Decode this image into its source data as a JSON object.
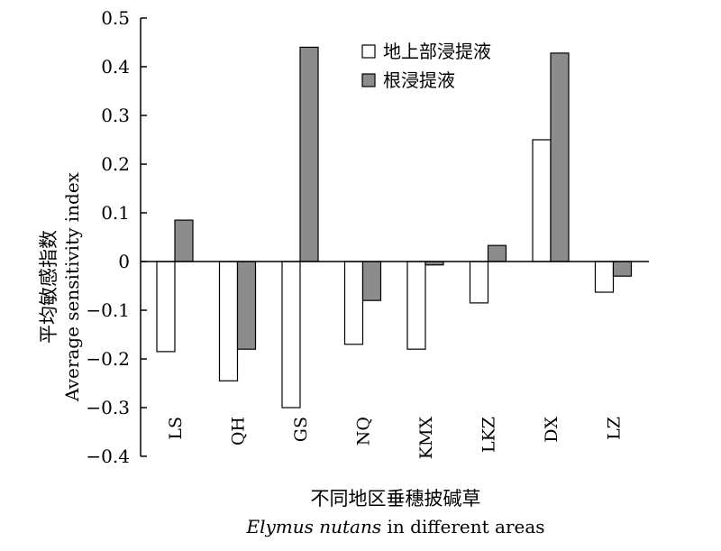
{
  "chart_data": {
    "type": "bar",
    "categories": [
      "LS",
      "QH",
      "GS",
      "NQ",
      "KMX",
      "LKZ",
      "DX",
      "LZ"
    ],
    "series": [
      {
        "name": "地上部浸提液",
        "color": "#ffffff",
        "values": [
          -0.185,
          -0.245,
          -0.3,
          -0.17,
          -0.18,
          -0.085,
          0.25,
          -0.063
        ]
      },
      {
        "name": "根浸提液",
        "color": "#8c8c8c",
        "values": [
          0.085,
          -0.18,
          0.44,
          -0.08,
          -0.007,
          0.033,
          0.428,
          -0.03
        ]
      }
    ],
    "ylim": [
      -0.4,
      0.5
    ],
    "yticks": [
      0.5,
      0.4,
      0.3,
      0.2,
      0.1,
      0,
      -0.1,
      -0.2,
      -0.3,
      -0.4
    ],
    "ytick_labels": [
      "0.5",
      "0.4",
      "0.3",
      "0.2",
      "0.1",
      "0",
      "−0.1",
      "−0.2",
      "−0.3",
      "−0.4"
    ],
    "ylabel_cn": "平均敏感指数",
    "ylabel_en": "Average sensitivity index",
    "xlabel_cn": "不同地区垂穗披碱草",
    "xlabel_en_italic": "Elymus nutans",
    "xlabel_en_rest": " in different areas",
    "legend_position": "top-right",
    "grid": false
  }
}
